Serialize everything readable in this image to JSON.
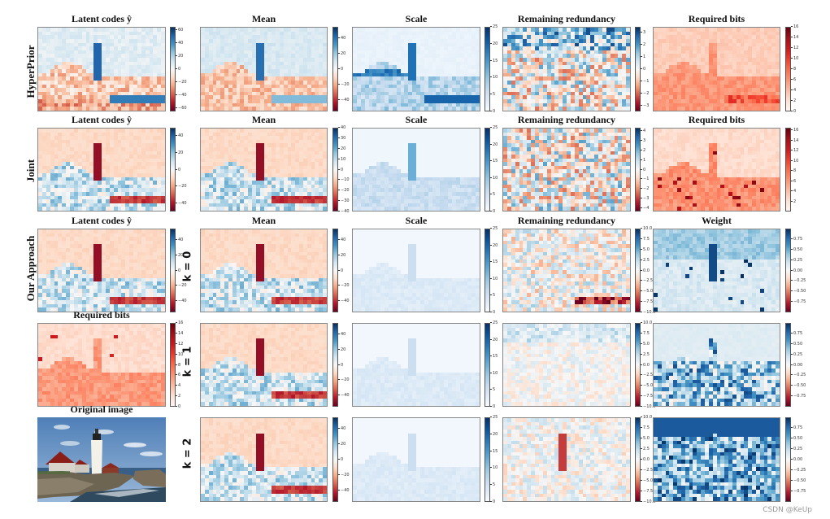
{
  "figure": {
    "row_labels": [
      "HyperPrior",
      "Joint",
      "Our Approach"
    ],
    "k_labels": [
      "k = 0",
      "k = 1",
      "k = 2"
    ],
    "watermark": "CSDN @KeUp",
    "colors": {
      "rdbu_low": "#67001f",
      "rdbu_mid": "#f7f7f7",
      "rdbu_high": "#053061",
      "blues_low": "#f7fbff",
      "blues_high": "#08306b",
      "reds_low": "#fff5f0",
      "reds_high": "#67000d"
    }
  },
  "chart_data": [
    {
      "id": "hp-latent",
      "type": "heatmap",
      "title": "Latent codes  ŷ",
      "row": "HyperPrior",
      "cmap": "RdBu",
      "colorbar_ticks": [
        "60",
        "40",
        "20",
        "0",
        "−20",
        "−40",
        "−60"
      ],
      "vmin": -65,
      "vmax": 65
    },
    {
      "id": "hp-mean",
      "type": "heatmap",
      "title": "Mean",
      "row": "HyperPrior",
      "cmap": "RdBu",
      "colorbar_ticks": [
        "40",
        "20",
        "0",
        "−20",
        "−40"
      ],
      "vmin": -55,
      "vmax": 55
    },
    {
      "id": "hp-scale",
      "type": "heatmap",
      "title": "Scale",
      "row": "HyperPrior",
      "cmap": "Blues",
      "colorbar_ticks": [
        "25",
        "20",
        "15",
        "10",
        "5",
        "0"
      ],
      "vmin": 0,
      "vmax": 25
    },
    {
      "id": "hp-redund",
      "type": "heatmap",
      "title": "Remaining redundancy",
      "row": "HyperPrior",
      "cmap": "RdBu",
      "colorbar_ticks": [
        "3",
        "2",
        "1",
        "0",
        "−1",
        "−2",
        "−3"
      ],
      "vmin": -3.5,
      "vmax": 3.5
    },
    {
      "id": "hp-bits",
      "type": "heatmap",
      "title": "Required bits",
      "row": "HyperPrior",
      "cmap": "Reds",
      "colorbar_ticks": [
        "16",
        "14",
        "12",
        "10",
        "8",
        "6",
        "4",
        "2",
        "0"
      ],
      "vmin": 0,
      "vmax": 16
    },
    {
      "id": "j-latent",
      "type": "heatmap",
      "title": "Latent codes  ŷ",
      "row": "Joint",
      "cmap": "RdBu",
      "colorbar_ticks": [
        "40",
        "20",
        "0",
        "−20",
        "−40"
      ],
      "vmin": -50,
      "vmax": 50
    },
    {
      "id": "j-mean",
      "type": "heatmap",
      "title": "Mean",
      "row": "Joint",
      "cmap": "RdBu",
      "colorbar_ticks": [
        "40",
        "30",
        "20",
        "10",
        "0",
        "−10",
        "−20",
        "−30",
        "−40"
      ],
      "vmin": -40,
      "vmax": 40
    },
    {
      "id": "j-scale",
      "type": "heatmap",
      "title": "Scale",
      "row": "Joint",
      "cmap": "Blues",
      "colorbar_ticks": [
        "25",
        "20",
        "15",
        "10",
        "5",
        "0"
      ],
      "vmin": 0,
      "vmax": 25
    },
    {
      "id": "j-redund",
      "type": "heatmap",
      "title": "Remaining redundancy",
      "row": "Joint",
      "cmap": "RdBu",
      "colorbar_ticks": [
        "4",
        "3",
        "2",
        "1",
        "0",
        "−1",
        "−2",
        "−3",
        "−4"
      ],
      "vmin": -4.3,
      "vmax": 4.3
    },
    {
      "id": "j-bits",
      "type": "heatmap",
      "title": "Required bits",
      "row": "Joint",
      "cmap": "Reds",
      "colorbar_ticks": [
        "16",
        "14",
        "12",
        "10",
        "8",
        "6",
        "4",
        "2"
      ],
      "vmin": 0,
      "vmax": 16.5
    },
    {
      "id": "o-latent",
      "type": "heatmap",
      "title": "Latent codes  ŷ",
      "row": "Our Approach",
      "cmap": "RdBu",
      "colorbar_ticks": [
        "40",
        "20",
        "0",
        "−20",
        "−40"
      ],
      "vmin": -55,
      "vmax": 55
    },
    {
      "id": "o-k0-mean",
      "type": "heatmap",
      "title": "Mean",
      "row": "k = 0",
      "cmap": "RdBu",
      "colorbar_ticks": [
        "40",
        "20",
        "0",
        "−20",
        "−40"
      ],
      "vmin": -55,
      "vmax": 55
    },
    {
      "id": "o-k0-scale",
      "type": "heatmap",
      "title": "Scale",
      "row": "k = 0",
      "cmap": "Blues",
      "colorbar_ticks": [
        "25",
        "20",
        "15",
        "10",
        "5",
        "0"
      ],
      "vmin": 0,
      "vmax": 25
    },
    {
      "id": "o-k0-redund",
      "type": "heatmap",
      "title": "Remaining redundancy",
      "row": "k = 0",
      "cmap": "RdBu",
      "colorbar_ticks": [
        "10.0",
        "7.5",
        "5.0",
        "2.5",
        "0.0",
        "−2.5",
        "−5.0",
        "−7.5",
        "−10.0"
      ],
      "vmin": -10,
      "vmax": 10
    },
    {
      "id": "o-k0-weight",
      "type": "heatmap",
      "title": "Weight",
      "row": "k = 0",
      "cmap": "RdBu",
      "colorbar_ticks": [
        "0.75",
        "0.50",
        "0.25",
        "0.00",
        "−0.25",
        "−0.50",
        "−0.75"
      ],
      "vmin": -1,
      "vmax": 1
    },
    {
      "id": "o-bits",
      "type": "heatmap",
      "title": "Required bits",
      "row": "Our Approach",
      "cmap": "Reds",
      "colorbar_ticks": [
        "16",
        "14",
        "12",
        "10",
        "8",
        "6",
        "4",
        "2",
        "0"
      ],
      "vmin": 0,
      "vmax": 16
    },
    {
      "id": "o-k1-mean",
      "type": "heatmap",
      "title": "",
      "row": "k = 1",
      "cmap": "RdBu",
      "colorbar_ticks": [
        "40",
        "20",
        "0",
        "−20",
        "−40"
      ],
      "vmin": -55,
      "vmax": 55
    },
    {
      "id": "o-k1-scale",
      "type": "heatmap",
      "title": "",
      "row": "k = 1",
      "cmap": "Blues",
      "colorbar_ticks": [
        "25",
        "20",
        "15",
        "10",
        "5",
        "0"
      ],
      "vmin": 0,
      "vmax": 25
    },
    {
      "id": "o-k1-redund",
      "type": "heatmap",
      "title": "",
      "row": "k = 1",
      "cmap": "RdBu",
      "colorbar_ticks": [
        "10.0",
        "7.5",
        "5.0",
        "2.5",
        "0.0",
        "−2.5",
        "−5.0",
        "−7.5",
        "−10.0"
      ],
      "vmin": -10,
      "vmax": 10
    },
    {
      "id": "o-k1-weight",
      "type": "heatmap",
      "title": "",
      "row": "k = 1",
      "cmap": "RdBu",
      "colorbar_ticks": [
        "0.75",
        "0.50",
        "0.25",
        "0.00",
        "−0.25",
        "−0.50",
        "−0.75"
      ],
      "vmin": -1,
      "vmax": 1
    },
    {
      "id": "original",
      "type": "image",
      "title": "Original image",
      "description": "Lighthouse on rocky coast with red-roofed house, blue sky"
    },
    {
      "id": "o-k2-mean",
      "type": "heatmap",
      "title": "",
      "row": "k = 2",
      "cmap": "RdBu",
      "colorbar_ticks": [
        "40",
        "20",
        "0",
        "−20",
        "−40"
      ],
      "vmin": -55,
      "vmax": 55
    },
    {
      "id": "o-k2-scale",
      "type": "heatmap",
      "title": "",
      "row": "k = 2",
      "cmap": "Blues",
      "colorbar_ticks": [
        "25",
        "20",
        "15",
        "10",
        "5",
        "0"
      ],
      "vmin": 0,
      "vmax": 25
    },
    {
      "id": "o-k2-redund",
      "type": "heatmap",
      "title": "",
      "row": "k = 2",
      "cmap": "RdBu",
      "colorbar_ticks": [
        "10.0",
        "7.5",
        "5.0",
        "2.5",
        "0.0",
        "−2.5",
        "−5.0",
        "−7.5",
        "−10.0"
      ],
      "vmin": -10,
      "vmax": 10
    },
    {
      "id": "o-k2-weight",
      "type": "heatmap",
      "title": "",
      "row": "k = 2",
      "cmap": "RdBu",
      "colorbar_ticks": [
        "0.75",
        "0.50",
        "0.25",
        "0.00",
        "−0.25",
        "−0.50",
        "−0.75"
      ],
      "vmin": -1,
      "vmax": 1
    }
  ]
}
